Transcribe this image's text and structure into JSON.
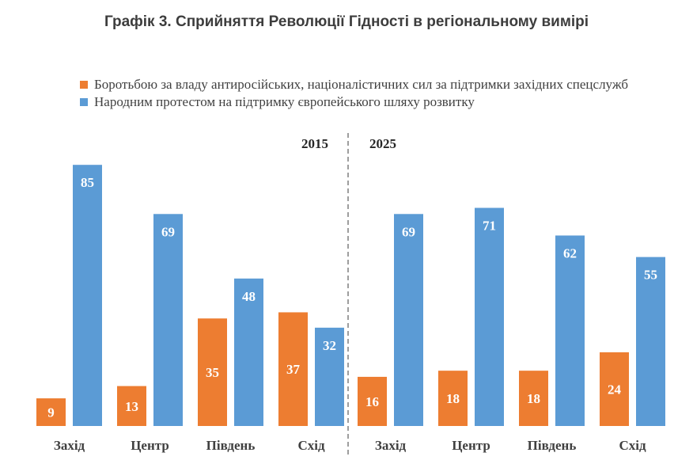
{
  "title": "Графік 3. Сприйняття Революції Гідності в регіональному вимірі",
  "colors": {
    "series_orange": "#ED7D31",
    "series_blue": "#5B9BD5",
    "label_text": "#ffffff",
    "axis_text": "#404040",
    "divider": "#7f7f7f"
  },
  "chart_data": {
    "type": "bar",
    "title": "Графік 3. Сприйняття Революції Гідності в регіональному вимірі",
    "legend_placement": "top",
    "grid": false,
    "ylim": [
      0,
      90
    ],
    "series": [
      {
        "name": "Боротьбою за владу антиросійських, націоналістичних сил за підтримки західних спецслужб",
        "color": "#ED7D31"
      },
      {
        "name": "Народним протестом на підтримку європейського шляху розвитку",
        "color": "#5B9BD5"
      }
    ],
    "panels": [
      {
        "label": "2015",
        "categories": [
          "Захід",
          "Центр",
          "Південь",
          "Схід"
        ],
        "values": [
          [
            9,
            13,
            35,
            37
          ],
          [
            85,
            69,
            48,
            32
          ]
        ]
      },
      {
        "label": "2025",
        "categories": [
          "Захід",
          "Центр",
          "Південь",
          "Схід"
        ],
        "values": [
          [
            16,
            18,
            18,
            24
          ],
          [
            69,
            71,
            62,
            55
          ]
        ]
      }
    ]
  }
}
